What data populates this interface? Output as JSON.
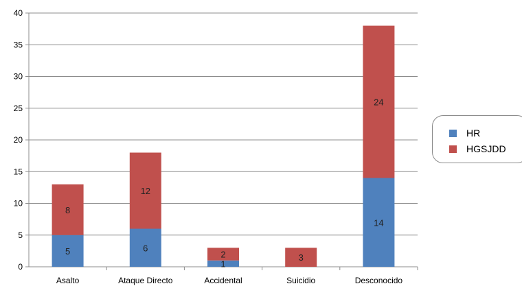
{
  "chart_data": {
    "type": "bar",
    "stacked": true,
    "categories": [
      "Asalto",
      "Ataque Directo",
      "Accidental",
      "Suicidio",
      "Desconocido"
    ],
    "series": [
      {
        "name": "HR",
        "color": "#4f81bd",
        "values": [
          5,
          6,
          1,
          0,
          14
        ]
      },
      {
        "name": "HGSJDD",
        "color": "#c0504d",
        "values": [
          8,
          12,
          2,
          3,
          24
        ]
      }
    ],
    "data_labels": [
      [
        "5",
        "6",
        "1",
        "",
        "14"
      ],
      [
        "8",
        "12",
        "2",
        "3",
        "24"
      ]
    ],
    "ylim": [
      0,
      40
    ],
    "yticks": [
      0,
      5,
      10,
      15,
      20,
      25,
      30,
      35,
      40
    ],
    "grid": true,
    "legend_position": "right"
  }
}
